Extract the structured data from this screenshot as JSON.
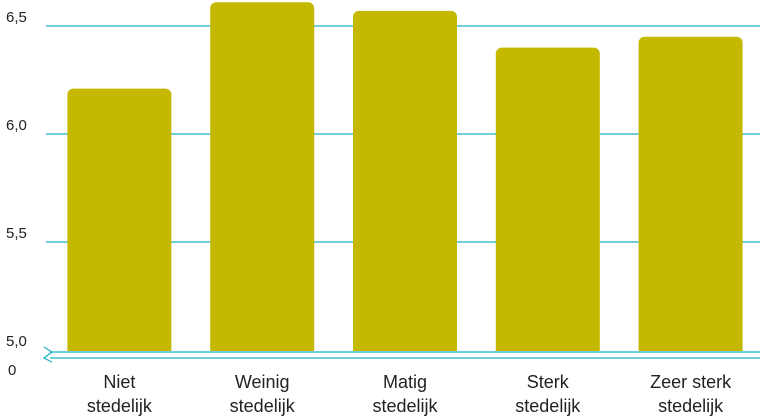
{
  "chart_data": {
    "type": "bar",
    "categories": [
      [
        "Niet",
        "stedelijk"
      ],
      [
        "Weinig",
        "stedelijk"
      ],
      [
        "Matig",
        "stedelijk"
      ],
      [
        "Sterk",
        "stedelijk"
      ],
      [
        "Zeer sterk",
        "stedelijk"
      ]
    ],
    "values": [
      6.21,
      6.61,
      6.57,
      6.4,
      6.45
    ],
    "ylim": [
      5.0,
      6.6
    ],
    "yticks": [
      {
        "value": 5.0,
        "label": "5,0"
      },
      {
        "value": 5.5,
        "label": "5,5"
      },
      {
        "value": 6.0,
        "label": "6,0"
      },
      {
        "value": 6.5,
        "label": "6,5"
      }
    ],
    "axis_break": true,
    "axis_zero_label": "0",
    "grid": true,
    "bar_color": "#c4b800",
    "grid_color": "#1ab0c8"
  }
}
